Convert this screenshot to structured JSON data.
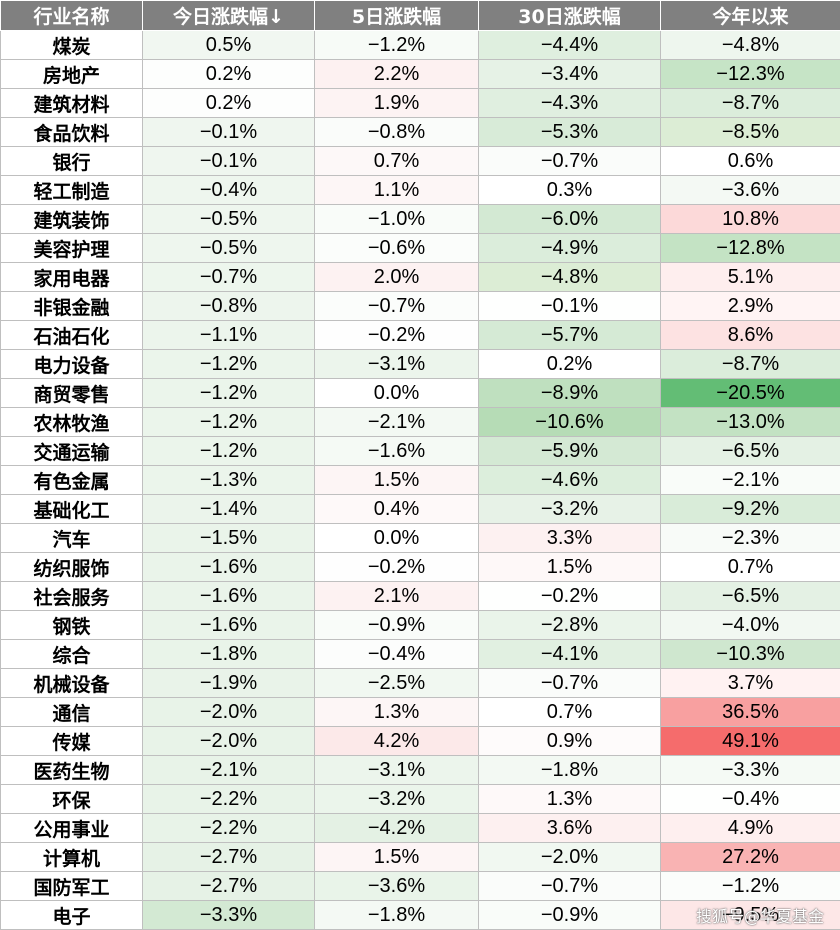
{
  "header": [
    "行业名称",
    "今日涨跌幅↓",
    "5日涨跌幅",
    "30日涨跌幅",
    "今年以来"
  ],
  "rows": [
    {
      "name": "煤炭",
      "values": [
        "0.5%",
        "−1.2%",
        "−4.4%",
        "−4.8%"
      ],
      "bg": [
        "#f1f7f1",
        "#f7fbf7",
        "#dfefdf",
        "#eef6ee"
      ]
    },
    {
      "name": "房地产",
      "values": [
        "0.2%",
        "2.2%",
        "−3.4%",
        "−12.3%"
      ],
      "bg": [
        "#fdfefd",
        "#fdf1f1",
        "#e6f2e6",
        "#c6e4c6"
      ]
    },
    {
      "name": "建筑材料",
      "values": [
        "0.2%",
        "1.9%",
        "−4.3%",
        "−8.7%"
      ],
      "bg": [
        "#fdfefd",
        "#fdf3f3",
        "#e0efe0",
        "#dbeddb"
      ]
    },
    {
      "name": "食品饮料",
      "values": [
        "−0.1%",
        "−0.8%",
        "−5.3%",
        "−8.5%"
      ],
      "bg": [
        "#eff6ef",
        "#fafcfa",
        "#d8ebd8",
        "#dcedd5"
      ]
    },
    {
      "name": "银行",
      "values": [
        "−0.1%",
        "0.7%",
        "−0.7%",
        "0.6%"
      ],
      "bg": [
        "#eff6ef",
        "#fdf8f8",
        "#fafcfa",
        "#ffffff"
      ]
    },
    {
      "name": "轻工制造",
      "values": [
        "−0.4%",
        "1.1%",
        "0.3%",
        "−3.6%"
      ],
      "bg": [
        "#eef6ee",
        "#fdf6f6",
        "#ffffff",
        "#f4f9f4"
      ]
    },
    {
      "name": "建筑装饰",
      "values": [
        "−0.5%",
        "−1.0%",
        "−6.0%",
        "10.8%"
      ],
      "bg": [
        "#eef6ee",
        "#f9fcf9",
        "#d3e9d3",
        "#fcd9d9"
      ]
    },
    {
      "name": "美容护理",
      "values": [
        "−0.5%",
        "−0.6%",
        "−4.9%",
        "−12.8%"
      ],
      "bg": [
        "#eef6ee",
        "#fbfdfb",
        "#dbeddb",
        "#c4e3c4"
      ]
    },
    {
      "name": "家用电器",
      "values": [
        "−0.7%",
        "2.0%",
        "−4.8%",
        "5.1%"
      ],
      "bg": [
        "#edf6ed",
        "#fdf2f2",
        "#dcedd5",
        "#feeeee"
      ]
    },
    {
      "name": "非银金融",
      "values": [
        "−0.8%",
        "−0.7%",
        "−0.1%",
        "2.9%"
      ],
      "bg": [
        "#edf5ed",
        "#fbfdfb",
        "#fefffe",
        "#fff4f4"
      ]
    },
    {
      "name": "石油石化",
      "values": [
        "−1.1%",
        "−0.2%",
        "−5.7%",
        "8.6%"
      ],
      "bg": [
        "#ecf5ec",
        "#fefefe",
        "#d5ead5",
        "#fde2e2"
      ]
    },
    {
      "name": "电力设备",
      "values": [
        "−1.2%",
        "−3.1%",
        "0.2%",
        "−8.7%"
      ],
      "bg": [
        "#ebf5eb",
        "#ecf5ec",
        "#ffffff",
        "#dbeddb"
      ]
    },
    {
      "name": "商贸零售",
      "values": [
        "−1.2%",
        "0.0%",
        "−8.9%",
        "−20.5%"
      ],
      "bg": [
        "#ebf5eb",
        "#ffffff",
        "#bfe0bf",
        "#63bd75"
      ]
    },
    {
      "name": "农林牧渔",
      "values": [
        "−1.2%",
        "−2.1%",
        "−10.6%",
        "−13.0%"
      ],
      "bg": [
        "#ebf5eb",
        "#f3f9f3",
        "#b6dcb6",
        "#c3e2c3"
      ]
    },
    {
      "name": "交通运输",
      "values": [
        "−1.2%",
        "−1.6%",
        "−5.9%",
        "−6.5%"
      ],
      "bg": [
        "#ebf5eb",
        "#f5faf5",
        "#d4e9d4",
        "#e4f1e4"
      ]
    },
    {
      "name": "有色金属",
      "values": [
        "−1.3%",
        "1.5%",
        "−4.6%",
        "−2.1%"
      ],
      "bg": [
        "#ebf5eb",
        "#fdf5f5",
        "#dceedc",
        "#f9fcf9"
      ]
    },
    {
      "name": "基础化工",
      "values": [
        "−1.4%",
        "0.4%",
        "−3.2%",
        "−9.2%"
      ],
      "bg": [
        "#ebf4eb",
        "#fef9f9",
        "#e7f2e7",
        "#d9ecd9"
      ]
    },
    {
      "name": "汽车",
      "values": [
        "−1.5%",
        "0.0%",
        "3.3%",
        "−2.3%"
      ],
      "bg": [
        "#eaf4ea",
        "#ffffff",
        "#fdf1f1",
        "#f8fbf8"
      ]
    },
    {
      "name": "纺织服饰",
      "values": [
        "−1.6%",
        "−0.2%",
        "1.5%",
        "0.7%"
      ],
      "bg": [
        "#eaf4ea",
        "#fefefe",
        "#fef8f8",
        "#ffffff"
      ]
    },
    {
      "name": "社会服务",
      "values": [
        "−1.6%",
        "2.1%",
        "−0.2%",
        "−6.5%"
      ],
      "bg": [
        "#eaf4ea",
        "#fdf2f2",
        "#fefffe",
        "#e4f1e4"
      ]
    },
    {
      "name": "钢铁",
      "values": [
        "−1.6%",
        "−0.9%",
        "−2.8%",
        "−4.0%"
      ],
      "bg": [
        "#eaf4ea",
        "#f9fcf9",
        "#eaf4ea",
        "#f2f8f2"
      ]
    },
    {
      "name": "综合",
      "values": [
        "−1.8%",
        "−0.4%",
        "−4.1%",
        "−10.3%"
      ],
      "bg": [
        "#e9f4e9",
        "#fcfdfc",
        "#e1f0e1",
        "#cfe7cf"
      ]
    },
    {
      "name": "机械设备",
      "values": [
        "−1.9%",
        "−2.5%",
        "−0.7%",
        "3.7%"
      ],
      "bg": [
        "#e9f3e9",
        "#f1f8f1",
        "#fafcfa",
        "#fff2f2"
      ]
    },
    {
      "name": "通信",
      "values": [
        "−2.0%",
        "1.3%",
        "0.7%",
        "36.5%"
      ],
      "bg": [
        "#e8f3e8",
        "#fdf6f6",
        "#ffffff",
        "#f8a0a0"
      ]
    },
    {
      "name": "传媒",
      "values": [
        "−2.0%",
        "4.2%",
        "0.9%",
        "49.1%"
      ],
      "bg": [
        "#e8f3e8",
        "#fce9e9",
        "#fefbfb",
        "#f56c6c"
      ]
    },
    {
      "name": "医药生物",
      "values": [
        "−2.1%",
        "−3.1%",
        "−1.8%",
        "−3.3%"
      ],
      "bg": [
        "#e8f3e8",
        "#ecf5ec",
        "#f3f9f3",
        "#f5faf5"
      ]
    },
    {
      "name": "环保",
      "values": [
        "−2.2%",
        "−3.2%",
        "1.3%",
        "−0.4%"
      ],
      "bg": [
        "#e8f3e8",
        "#ebf5eb",
        "#fef9f9",
        "#fefffe"
      ]
    },
    {
      "name": "公用事业",
      "values": [
        "−2.2%",
        "−4.2%",
        "3.6%",
        "4.9%"
      ],
      "bg": [
        "#e8f3e8",
        "#e4f1e4",
        "#fdf0f0",
        "#feefef"
      ]
    },
    {
      "name": "计算机",
      "values": [
        "−2.7%",
        "1.5%",
        "−2.0%",
        "27.2%"
      ],
      "bg": [
        "#e6f2e6",
        "#fdf5f5",
        "#f1f8f1",
        "#f9b3b3"
      ]
    },
    {
      "name": "国防军工",
      "values": [
        "−2.7%",
        "−3.6%",
        "−0.7%",
        "−1.2%"
      ],
      "bg": [
        "#e6f2e6",
        "#e9f4e9",
        "#fafcfa",
        "#fbfdfb"
      ]
    },
    {
      "name": "电子",
      "values": [
        "−3.3%",
        "−1.8%",
        "−0.9%",
        "−9.5%"
      ],
      "bg": [
        "#d3e9d3",
        "#f4f9f4",
        "#f9fcf9",
        "#fde7e7"
      ]
    }
  ],
  "watermark": "搜狐号@华夏基金"
}
